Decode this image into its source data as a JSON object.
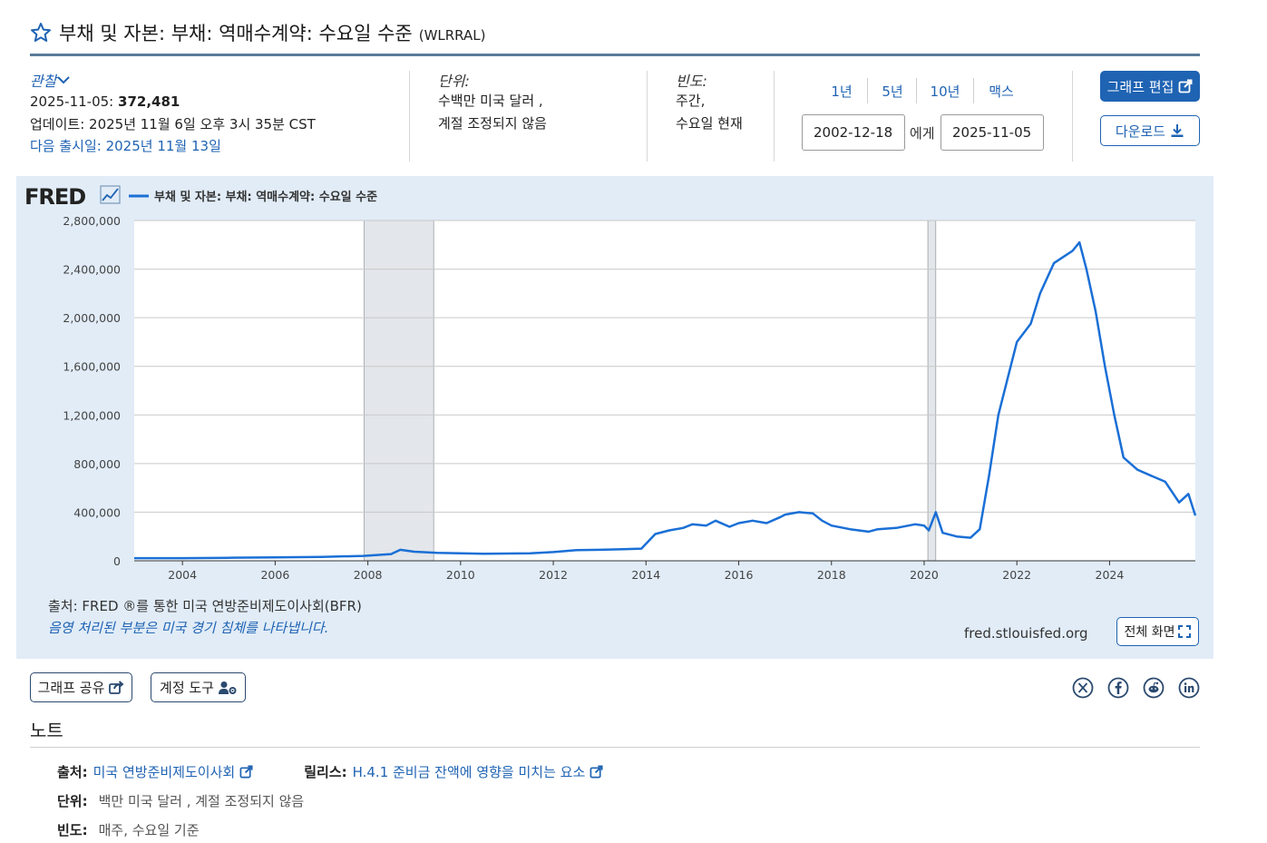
{
  "header": {
    "title": "부채 및 자본: 부채: 역매수계약: 수요일 수준",
    "series_id": "(WLRRAL)"
  },
  "observation": {
    "label": "관찰",
    "date": "2025-11-05:",
    "value": "372,481",
    "updated": "업데이트: 2025년 11월 6일 오후 3시 35분 CST",
    "next_release": "다음 출시일: 2025년 11월 13일"
  },
  "units": {
    "label": "단위:",
    "line1": "수백만 미국 달러 ,",
    "line2": "계절 조정되지 않음"
  },
  "frequency": {
    "label": "빈도:",
    "line1": "주간,",
    "line2": "수요일 현재"
  },
  "range": {
    "buttons": [
      "1년",
      "5년",
      "10년",
      "맥스"
    ],
    "start": "2002-12-18",
    "to_label": "에게",
    "end": "2025-11-05"
  },
  "actions": {
    "edit_graph": "그래프 편집",
    "download": "다운로드"
  },
  "chart": {
    "logo_text": "FRED",
    "source": "출처: FRED ®를 통한 미국 연방준비제도이사회(BFR)",
    "recession_note": "음영 처리된 부분은 미국 경기 침체를 나타냅니다.",
    "url": "fred.stlouisfed.org",
    "fullscreen": "전체 화면"
  },
  "chart_data": {
    "type": "line",
    "title": "",
    "xlabel": "",
    "ylabel": "",
    "series": [
      {
        "name": "부채 및 자본: 부채: 역매수계약: 수요일 수준",
        "color": "#1a6fd6",
        "points": [
          [
            2002.96,
            22000
          ],
          [
            2004.0,
            22000
          ],
          [
            2005.0,
            25000
          ],
          [
            2006.0,
            28000
          ],
          [
            2007.0,
            32000
          ],
          [
            2007.9,
            40000
          ],
          [
            2008.5,
            55000
          ],
          [
            2008.7,
            90000
          ],
          [
            2009.0,
            75000
          ],
          [
            2009.5,
            65000
          ],
          [
            2010.0,
            62000
          ],
          [
            2010.5,
            58000
          ],
          [
            2011.0,
            60000
          ],
          [
            2011.5,
            62000
          ],
          [
            2012.0,
            72000
          ],
          [
            2012.5,
            88000
          ],
          [
            2013.0,
            90000
          ],
          [
            2013.5,
            95000
          ],
          [
            2013.9,
            100000
          ],
          [
            2014.0,
            140000
          ],
          [
            2014.2,
            220000
          ],
          [
            2014.5,
            250000
          ],
          [
            2014.8,
            270000
          ],
          [
            2015.0,
            300000
          ],
          [
            2015.3,
            290000
          ],
          [
            2015.5,
            330000
          ],
          [
            2015.8,
            280000
          ],
          [
            2016.0,
            310000
          ],
          [
            2016.3,
            330000
          ],
          [
            2016.6,
            310000
          ],
          [
            2016.9,
            360000
          ],
          [
            2017.0,
            380000
          ],
          [
            2017.3,
            400000
          ],
          [
            2017.6,
            390000
          ],
          [
            2017.8,
            330000
          ],
          [
            2018.0,
            290000
          ],
          [
            2018.4,
            260000
          ],
          [
            2018.8,
            240000
          ],
          [
            2019.0,
            260000
          ],
          [
            2019.4,
            270000
          ],
          [
            2019.8,
            300000
          ],
          [
            2020.0,
            290000
          ],
          [
            2020.1,
            250000
          ],
          [
            2020.25,
            400000
          ],
          [
            2020.4,
            230000
          ],
          [
            2020.7,
            200000
          ],
          [
            2021.0,
            190000
          ],
          [
            2021.2,
            260000
          ],
          [
            2021.4,
            700000
          ],
          [
            2021.6,
            1200000
          ],
          [
            2021.8,
            1500000
          ],
          [
            2022.0,
            1800000
          ],
          [
            2022.3,
            1950000
          ],
          [
            2022.5,
            2200000
          ],
          [
            2022.8,
            2450000
          ],
          [
            2023.0,
            2500000
          ],
          [
            2023.2,
            2550000
          ],
          [
            2023.35,
            2620000
          ],
          [
            2023.5,
            2400000
          ],
          [
            2023.7,
            2050000
          ],
          [
            2023.9,
            1600000
          ],
          [
            2024.1,
            1200000
          ],
          [
            2024.3,
            850000
          ],
          [
            2024.6,
            750000
          ],
          [
            2024.9,
            700000
          ],
          [
            2025.2,
            650000
          ],
          [
            2025.5,
            480000
          ],
          [
            2025.7,
            550000
          ],
          [
            2025.85,
            372481
          ]
        ]
      }
    ],
    "x_ticks": [
      "2004",
      "2006",
      "2008",
      "2010",
      "2012",
      "2014",
      "2016",
      "2018",
      "2020",
      "2022",
      "2024"
    ],
    "y_ticks": [
      "0",
      "400,000",
      "800,000",
      "1,200,000",
      "1,600,000",
      "2,000,000",
      "2,400,000",
      "2,800,000"
    ],
    "xlim": [
      2002.96,
      2025.85
    ],
    "ylim": [
      0,
      2800000
    ],
    "recessions": [
      [
        2007.92,
        2009.42
      ],
      [
        2020.08,
        2020.25
      ]
    ],
    "grid": true,
    "legend": "top-left"
  },
  "bottom": {
    "share": "그래프 공유",
    "account_tools": "계정 도구",
    "social": [
      "x-icon",
      "facebook-icon",
      "reddit-icon",
      "linkedin-icon"
    ]
  },
  "notes": {
    "heading": "노트",
    "source_key": "출처:",
    "source_val": "미국 연방준비제도이사회",
    "release_key": "릴리스:",
    "release_val": "H.4.1 준비금 잔액에 영향을 미치는 요소",
    "units_key": "단위:",
    "units_val": "백만 미국 달러 , 계절 조정되지 않음",
    "freq_key": "빈도:",
    "freq_val": "매주, 수요일 기준"
  }
}
